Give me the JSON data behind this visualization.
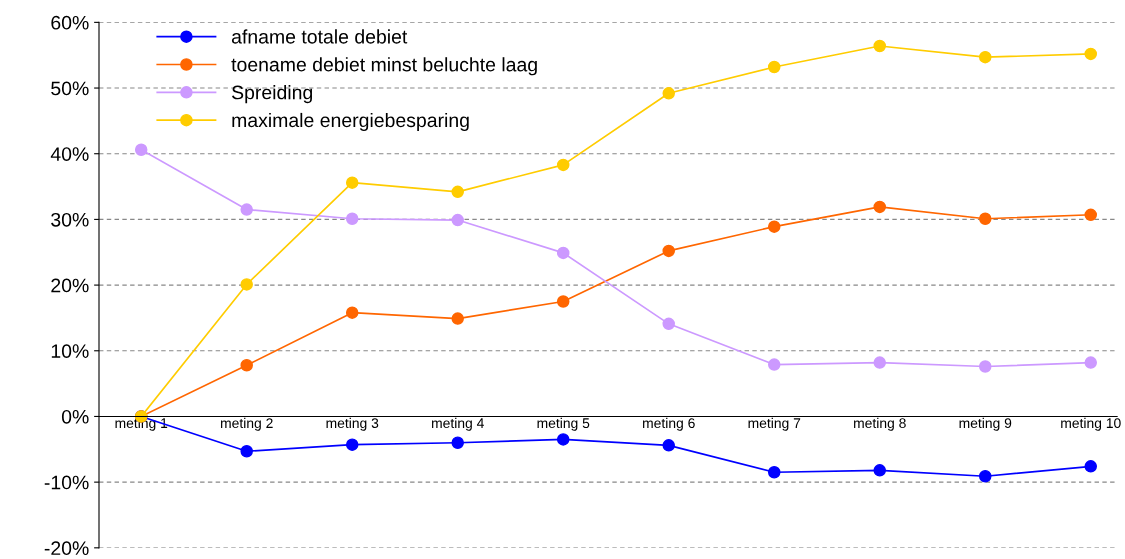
{
  "chart_data": {
    "type": "line",
    "categories": [
      "meting 1",
      "meting 2",
      "meting 3",
      "meting 4",
      "meting 5",
      "meting 6",
      "meting 7",
      "meting 8",
      "meting 9",
      "meting 10"
    ],
    "series": [
      {
        "name": "afname totale debiet",
        "color": "#0000ff",
        "values": [
          0,
          -5.3,
          -4.3,
          -4.0,
          -3.5,
          -4.4,
          -8.5,
          -8.2,
          -9.1,
          -7.6
        ]
      },
      {
        "name": "toename debiet minst beluchte laag",
        "color": "#ff6600",
        "values": [
          0,
          7.8,
          15.8,
          14.9,
          17.5,
          25.2,
          28.9,
          31.9,
          30.1,
          30.7
        ]
      },
      {
        "name": "Spreiding",
        "color": "#cc99ff",
        "values": [
          40.6,
          31.5,
          30.1,
          29.9,
          24.9,
          14.1,
          7.9,
          8.2,
          7.6,
          8.2
        ]
      },
      {
        "name": "maximale energiebesparing",
        "color": "#ffcc00",
        "values": [
          0,
          20.1,
          35.6,
          34.2,
          38.3,
          49.2,
          53.2,
          56.4,
          54.7,
          55.2
        ]
      }
    ],
    "ylim": [
      -20,
      60
    ],
    "yticks": [
      {
        "value": -20,
        "label": "-20%"
      },
      {
        "value": -10,
        "label": "-10%"
      },
      {
        "value": 0,
        "label": "0%"
      },
      {
        "value": 10,
        "label": "10%"
      },
      {
        "value": 20,
        "label": "20%"
      },
      {
        "value": 30,
        "label": "30%"
      },
      {
        "value": 40,
        "label": "40%"
      },
      {
        "value": 50,
        "label": "50%"
      },
      {
        "value": 60,
        "label": "60%"
      }
    ],
    "grid": "y",
    "legend": "top left",
    "marker": "circle",
    "line_style": "solid"
  }
}
